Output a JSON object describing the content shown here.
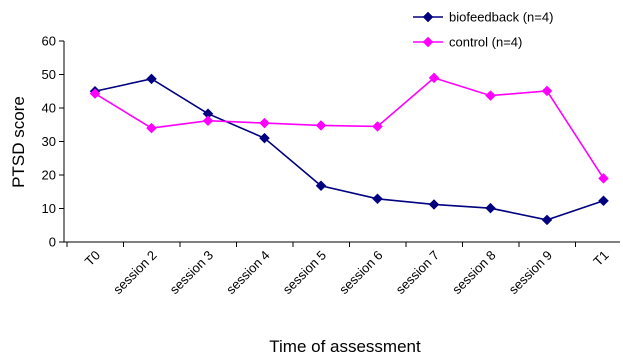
{
  "chart_data": {
    "type": "line",
    "title": "",
    "xlabel": "Time of assessment",
    "ylabel": "PTSD score",
    "ylim": [
      0,
      60
    ],
    "yticks": [
      0,
      10,
      20,
      30,
      40,
      50,
      60
    ],
    "categories": [
      "T0",
      "session 2",
      "session 3",
      "session 4",
      "session 5",
      "session 6",
      "session 7",
      "session 8",
      "session 9",
      "T1"
    ],
    "grid": false,
    "legend_position": "top-right",
    "series": [
      {
        "name": "biofeedback (n=4)",
        "color": "#000080",
        "marker": "diamond",
        "values": [
          45,
          48.7,
          38.3,
          31,
          16.8,
          12.9,
          11.2,
          10.1,
          6.6,
          12.3
        ]
      },
      {
        "name": "control (n=4)",
        "color": "#FF00FF",
        "marker": "diamond",
        "values": [
          44.3,
          34,
          36.2,
          35.5,
          34.8,
          34.5,
          49,
          43.7,
          45.1,
          19
        ]
      }
    ]
  }
}
